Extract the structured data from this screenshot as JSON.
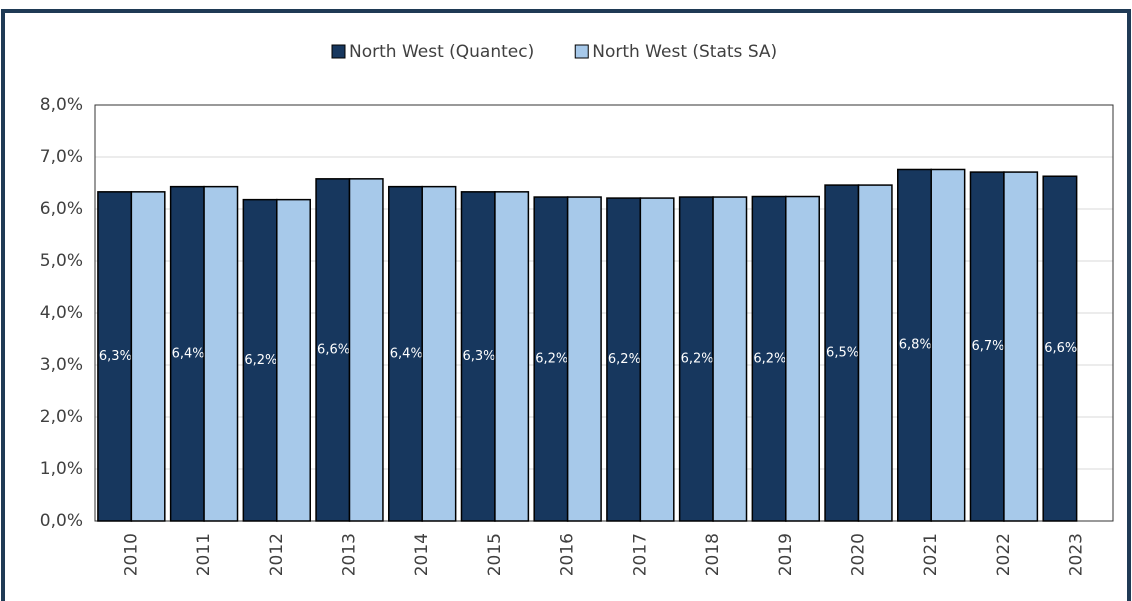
{
  "chart_data": {
    "type": "bar",
    "categories": [
      "2010",
      "2011",
      "2012",
      "2013",
      "2014",
      "2015",
      "2016",
      "2017",
      "2018",
      "2019",
      "2020",
      "2021",
      "2022",
      "2023"
    ],
    "series": [
      {
        "name": "North West (Quantec)",
        "color": "#17375e",
        "values": [
          6.33,
          6.43,
          6.18,
          6.58,
          6.43,
          6.33,
          6.23,
          6.21,
          6.23,
          6.24,
          6.46,
          6.76,
          6.71,
          6.63
        ],
        "value_labels": [
          "6,3%",
          "6,4%",
          "6,2%",
          "6,6%",
          "6,4%",
          "6,3%",
          "6,2%",
          "6,2%",
          "6,2%",
          "6,2%",
          "6,5%",
          "6,8%",
          "6,7%",
          "6,6%"
        ]
      },
      {
        "name": "North West (Stats SA)",
        "color": "#a7c9ea",
        "values": [
          6.33,
          6.43,
          6.18,
          6.58,
          6.43,
          6.33,
          6.23,
          6.21,
          6.23,
          6.24,
          6.46,
          6.76,
          6.71,
          null
        ]
      }
    ],
    "ylim": [
      0,
      8
    ],
    "yticks": [
      {
        "value": 0,
        "label": "0,0%"
      },
      {
        "value": 1,
        "label": "1,0%"
      },
      {
        "value": 2,
        "label": "2,0%"
      },
      {
        "value": 3,
        "label": "3,0%"
      },
      {
        "value": 4,
        "label": "4,0%"
      },
      {
        "value": 5,
        "label": "5,0%"
      },
      {
        "value": 6,
        "label": "6,0%"
      },
      {
        "value": 7,
        "label": "7,0%"
      },
      {
        "value": 8,
        "label": "8,0%"
      }
    ],
    "grid": true,
    "legend": "top"
  }
}
